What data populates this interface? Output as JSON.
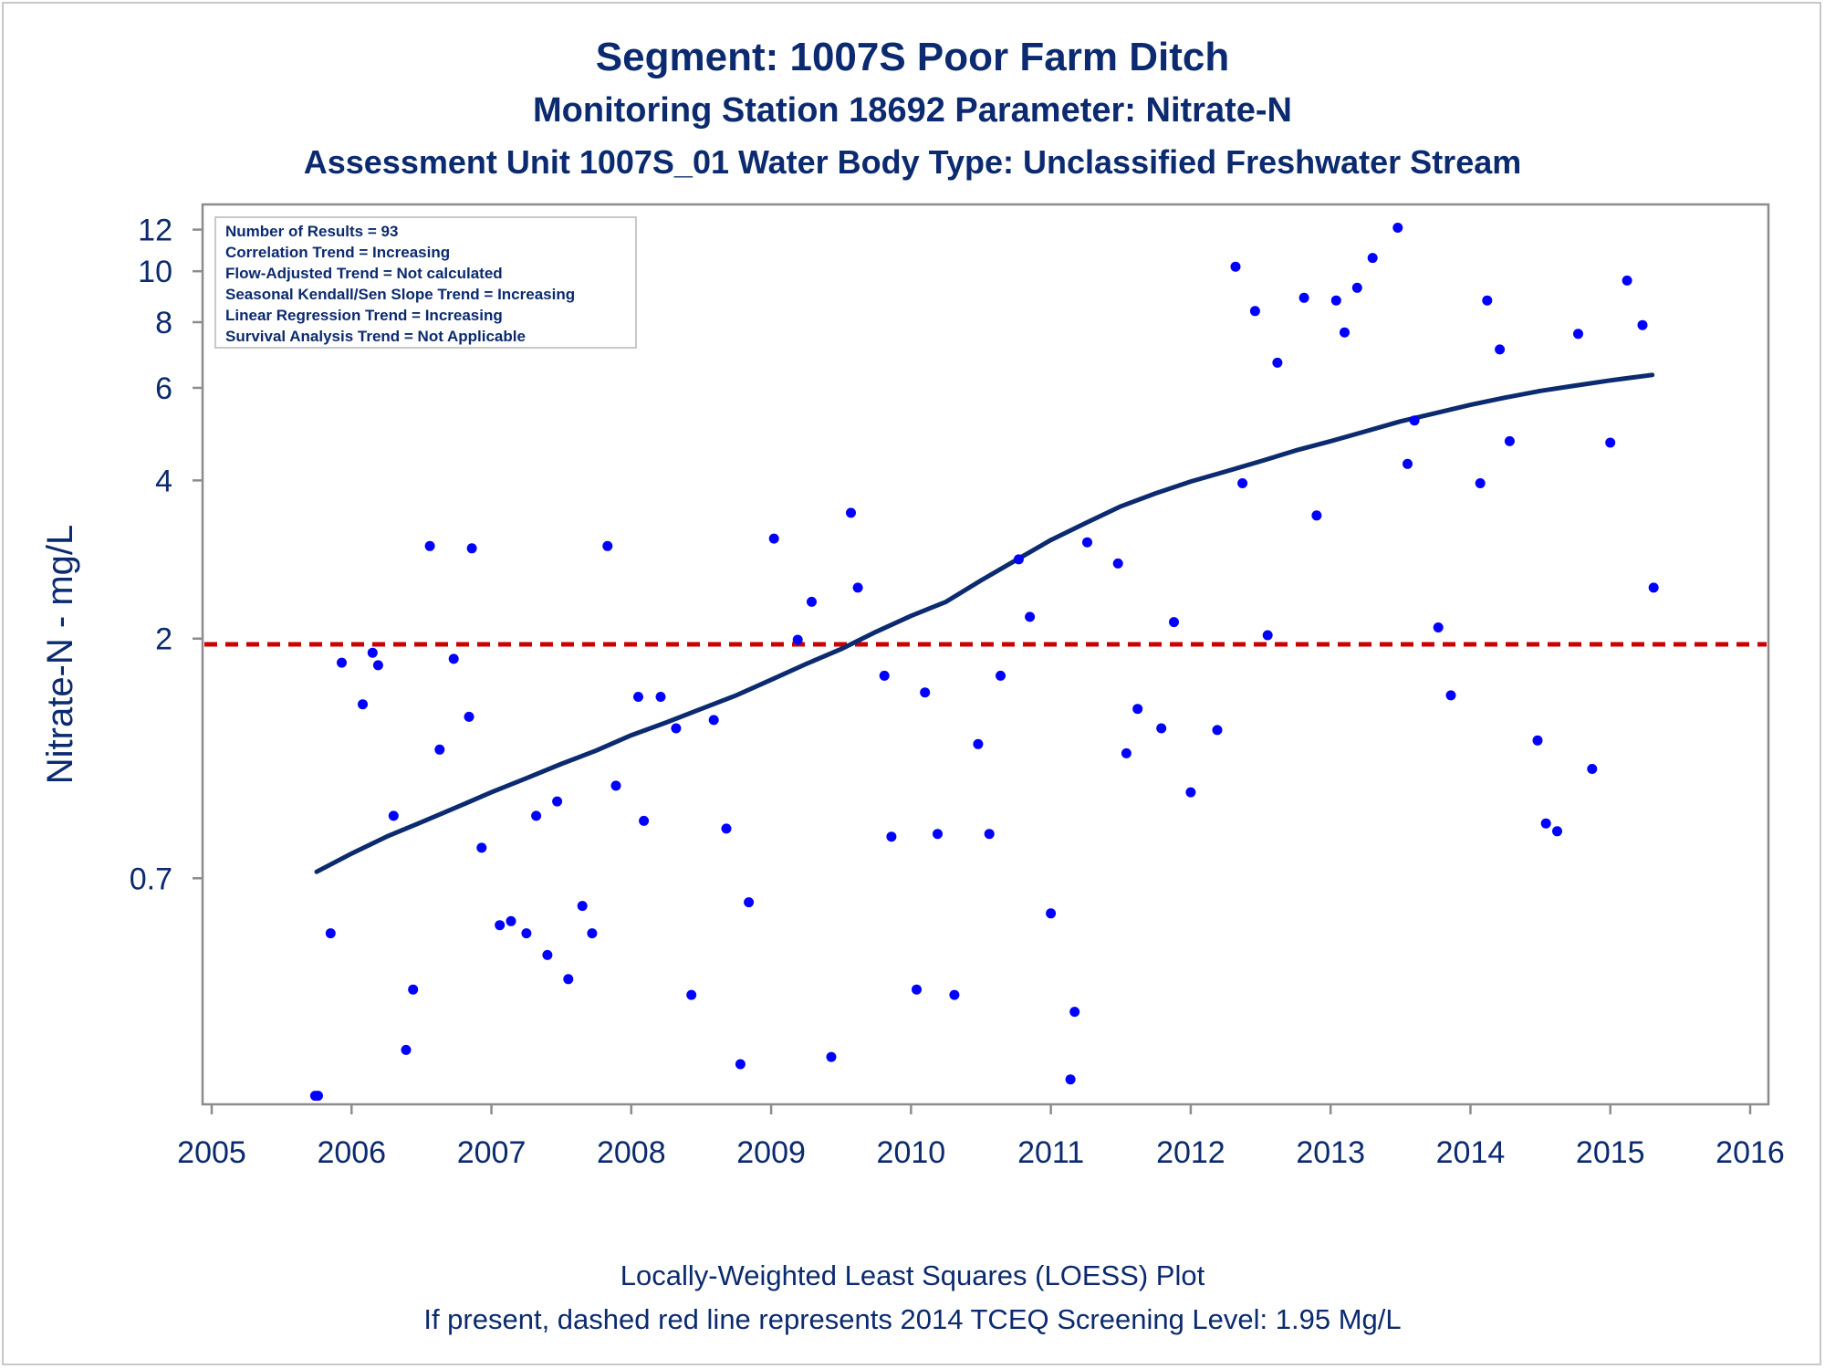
{
  "title": "Segment: 1007S  Poor Farm Ditch",
  "subtitle1": "Monitoring Station 18692 Parameter: Nitrate-N",
  "subtitle2": "Assessment Unit 1007S_01   Water Body Type: Unclassified Freshwater Stream",
  "footnote1": "Locally-Weighted Least Squares (LOESS) Plot",
  "footnote2": "If present, dashed red line represents 2014 TCEQ Screening Level: 1.95 Mg/L",
  "inset": [
    "Number of Results = 93",
    "Correlation Trend = Increasing",
    "Flow-Adjusted Trend = Not calculated",
    "Seasonal Kendall/Sen Slope Trend = Increasing",
    "Linear Regression Trend = Increasing",
    "Survival Analysis Trend = Not Applicable"
  ],
  "colors": {
    "text": "#0b2a6f",
    "points": "#0000ff",
    "loess": "#0b2a6f",
    "screening": "#cc0000",
    "axis": "#8c8c8c"
  },
  "chart_data": {
    "type": "scatter",
    "ylabel": "Nitrate-N - mg/L",
    "xlabel": "",
    "y_scale": "log",
    "xlim": [
      2005,
      2016
    ],
    "ylim": [
      0.26,
      13.4
    ],
    "x_ticks": [
      2005,
      2006,
      2007,
      2008,
      2009,
      2010,
      2011,
      2012,
      2013,
      2014,
      2015,
      2016
    ],
    "y_ticks": [
      0.7,
      2,
      4,
      6,
      8,
      10,
      12
    ],
    "screening_level": 1.95,
    "series": [
      {
        "type": "scatter",
        "points": [
          [
            2005.74,
            0.27
          ],
          [
            2005.76,
            0.27
          ],
          [
            2005.85,
            0.55
          ],
          [
            2005.93,
            1.8
          ],
          [
            2006.08,
            1.5
          ],
          [
            2006.15,
            1.88
          ],
          [
            2006.19,
            1.78
          ],
          [
            2006.3,
            0.92
          ],
          [
            2006.39,
            0.33
          ],
          [
            2006.44,
            0.43
          ],
          [
            2006.56,
            3.0
          ],
          [
            2006.63,
            1.23
          ],
          [
            2006.73,
            1.83
          ],
          [
            2006.84,
            1.42
          ],
          [
            2006.86,
            2.97
          ],
          [
            2006.93,
            0.8
          ],
          [
            2007.06,
            0.57
          ],
          [
            2007.14,
            0.58
          ],
          [
            2007.25,
            0.55
          ],
          [
            2007.32,
            0.92
          ],
          [
            2007.4,
            0.5
          ],
          [
            2007.47,
            0.98
          ],
          [
            2007.55,
            0.45
          ],
          [
            2007.65,
            0.62
          ],
          [
            2007.72,
            0.55
          ],
          [
            2007.83,
            3.0
          ],
          [
            2007.89,
            1.05
          ],
          [
            2008.05,
            1.55
          ],
          [
            2008.09,
            0.9
          ],
          [
            2008.21,
            1.55
          ],
          [
            2008.32,
            1.35
          ],
          [
            2008.43,
            0.42
          ],
          [
            2008.59,
            1.4
          ],
          [
            2008.68,
            0.87
          ],
          [
            2008.78,
            0.31
          ],
          [
            2008.84,
            0.63
          ],
          [
            2009.02,
            3.1
          ],
          [
            2009.19,
            1.99
          ],
          [
            2009.29,
            2.35
          ],
          [
            2009.43,
            0.32
          ],
          [
            2009.57,
            3.47
          ],
          [
            2009.62,
            2.5
          ],
          [
            2009.81,
            1.7
          ],
          [
            2009.86,
            0.84
          ],
          [
            2010.04,
            0.43
          ],
          [
            2010.1,
            1.58
          ],
          [
            2010.19,
            0.85
          ],
          [
            2010.31,
            0.42
          ],
          [
            2010.48,
            1.26
          ],
          [
            2010.56,
            0.85
          ],
          [
            2010.64,
            1.7
          ],
          [
            2010.77,
            2.83
          ],
          [
            2010.85,
            2.2
          ],
          [
            2011.0,
            0.6
          ],
          [
            2011.14,
            0.29
          ],
          [
            2011.17,
            0.39
          ],
          [
            2011.26,
            3.05
          ],
          [
            2011.48,
            2.78
          ],
          [
            2011.54,
            1.21
          ],
          [
            2011.62,
            1.47
          ],
          [
            2011.79,
            1.35
          ],
          [
            2011.88,
            2.15
          ],
          [
            2012.0,
            1.02
          ],
          [
            2012.19,
            1.34
          ],
          [
            2012.32,
            10.2
          ],
          [
            2012.37,
            3.95
          ],
          [
            2012.46,
            8.4
          ],
          [
            2012.55,
            2.03
          ],
          [
            2012.62,
            6.7
          ],
          [
            2012.81,
            8.9
          ],
          [
            2012.9,
            3.43
          ],
          [
            2013.04,
            8.8
          ],
          [
            2013.1,
            7.65
          ],
          [
            2013.19,
            9.3
          ],
          [
            2013.3,
            10.6
          ],
          [
            2013.48,
            12.1
          ],
          [
            2013.55,
            4.3
          ],
          [
            2013.6,
            5.2
          ],
          [
            2013.77,
            2.1
          ],
          [
            2013.86,
            1.56
          ],
          [
            2014.07,
            3.95
          ],
          [
            2014.12,
            8.8
          ],
          [
            2014.21,
            7.1
          ],
          [
            2014.28,
            4.75
          ],
          [
            2014.48,
            1.28
          ],
          [
            2014.54,
            0.89
          ],
          [
            2014.62,
            0.86
          ],
          [
            2014.77,
            7.6
          ],
          [
            2014.87,
            1.13
          ],
          [
            2015.0,
            4.72
          ],
          [
            2015.12,
            9.6
          ],
          [
            2015.23,
            7.9
          ],
          [
            2015.31,
            2.5
          ]
        ]
      },
      {
        "type": "line",
        "name": "LOESS",
        "points": [
          [
            2005.75,
            0.72
          ],
          [
            2006.0,
            0.78
          ],
          [
            2006.25,
            0.84
          ],
          [
            2006.5,
            0.895
          ],
          [
            2006.75,
            0.955
          ],
          [
            2007.0,
            1.02
          ],
          [
            2007.25,
            1.085
          ],
          [
            2007.5,
            1.155
          ],
          [
            2007.75,
            1.225
          ],
          [
            2008.0,
            1.31
          ],
          [
            2008.25,
            1.385
          ],
          [
            2008.5,
            1.47
          ],
          [
            2008.75,
            1.56
          ],
          [
            2009.0,
            1.67
          ],
          [
            2009.25,
            1.79
          ],
          [
            2009.5,
            1.91
          ],
          [
            2009.75,
            2.06
          ],
          [
            2010.0,
            2.21
          ],
          [
            2010.25,
            2.35
          ],
          [
            2010.5,
            2.58
          ],
          [
            2010.75,
            2.82
          ],
          [
            2011.0,
            3.08
          ],
          [
            2011.25,
            3.32
          ],
          [
            2011.5,
            3.57
          ],
          [
            2011.75,
            3.78
          ],
          [
            2012.0,
            3.98
          ],
          [
            2012.25,
            4.16
          ],
          [
            2012.5,
            4.35
          ],
          [
            2012.75,
            4.56
          ],
          [
            2013.0,
            4.75
          ],
          [
            2013.25,
            4.96
          ],
          [
            2013.5,
            5.18
          ],
          [
            2013.75,
            5.37
          ],
          [
            2014.0,
            5.57
          ],
          [
            2014.25,
            5.75
          ],
          [
            2014.5,
            5.92
          ],
          [
            2014.75,
            6.06
          ],
          [
            2015.0,
            6.2
          ],
          [
            2015.3,
            6.35
          ]
        ]
      }
    ]
  }
}
